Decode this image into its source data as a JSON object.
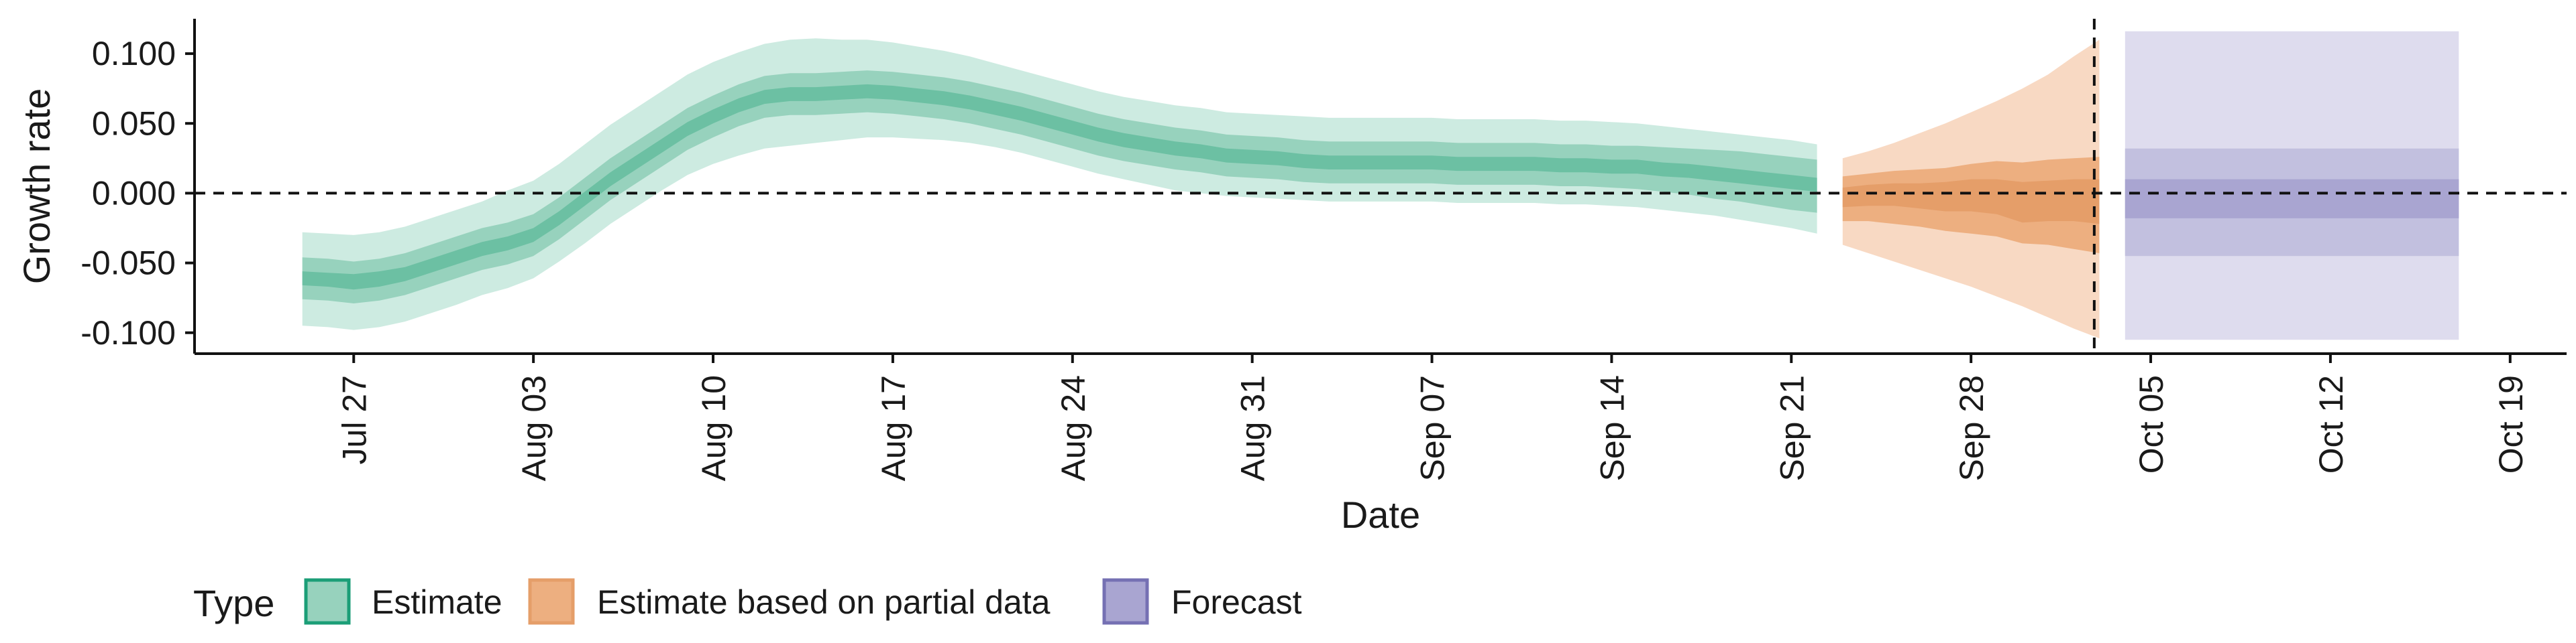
{
  "chart_data": {
    "type": "area",
    "title": "",
    "xlabel": "Date",
    "ylabel": "Growth rate",
    "ylim": [
      -0.115,
      0.125
    ],
    "grid": false,
    "y_ticks": [
      {
        "value": -0.1,
        "label": "-0.100"
      },
      {
        "value": -0.05,
        "label": "-0.050"
      },
      {
        "value": 0.0,
        "label": "0.000"
      },
      {
        "value": 0.05,
        "label": "0.050"
      },
      {
        "value": 0.1,
        "label": "0.100"
      }
    ],
    "x_ticks": [
      {
        "day": 0,
        "label": "Jul 27"
      },
      {
        "day": 7,
        "label": "Aug 03"
      },
      {
        "day": 14,
        "label": "Aug 10"
      },
      {
        "day": 21,
        "label": "Aug 17"
      },
      {
        "day": 28,
        "label": "Aug 24"
      },
      {
        "day": 35,
        "label": "Aug 31"
      },
      {
        "day": 42,
        "label": "Sep 07"
      },
      {
        "day": 49,
        "label": "Sep 14"
      },
      {
        "day": 56,
        "label": "Sep 21"
      },
      {
        "day": 63,
        "label": "Sep 28"
      },
      {
        "day": 70,
        "label": "Oct 05"
      },
      {
        "day": 77,
        "label": "Oct 12"
      },
      {
        "day": 84,
        "label": "Oct 19"
      }
    ],
    "x_range_days": [
      -6.2,
      86.2
    ],
    "x_origin_note": "day 0 = Jul 27",
    "reference_lines": {
      "horizontal_y": 0.0,
      "vertical_day": 67.8
    },
    "colors": {
      "Estimate": "#1b9e77",
      "Estimate based on partial data": "#e57b2c",
      "Forecast": "#7570b3",
      "Estimate_outer": "#cdebe1",
      "Estimate_mid": "#97d2bd",
      "Estimate_inner": "#6cc0a3",
      "Partial_outer": "#f8d9c3",
      "Partial_mid": "#edaf80",
      "Partial_inner": "#e59e69",
      "Forecast_outer": "#dedcee",
      "Forecast_mid": "#c2c0df",
      "Forecast_inner": "#a9a5d1"
    },
    "series": [
      {
        "name": "Estimate",
        "days": [
          -2,
          -1,
          0,
          1,
          2,
          3,
          4,
          5,
          6,
          7,
          8,
          9,
          10,
          11,
          12,
          13,
          14,
          15,
          16,
          17,
          18,
          19,
          20,
          21,
          22,
          23,
          24,
          25,
          26,
          27,
          28,
          29,
          30,
          31,
          32,
          33,
          34,
          35,
          36,
          37,
          38,
          39,
          40,
          41,
          42,
          43,
          44,
          45,
          46,
          47,
          48,
          49,
          50,
          51,
          52,
          53,
          54,
          55,
          56,
          57
        ],
        "median": [
          -0.061,
          -0.062,
          -0.064,
          -0.062,
          -0.058,
          -0.052,
          -0.046,
          -0.04,
          -0.036,
          -0.03,
          -0.018,
          -0.004,
          0.01,
          0.022,
          0.034,
          0.046,
          0.055,
          0.063,
          0.069,
          0.071,
          0.071,
          0.072,
          0.073,
          0.072,
          0.07,
          0.068,
          0.065,
          0.061,
          0.057,
          0.052,
          0.047,
          0.042,
          0.038,
          0.035,
          0.032,
          0.03,
          0.027,
          0.026,
          0.025,
          0.023,
          0.022,
          0.022,
          0.022,
          0.022,
          0.022,
          0.021,
          0.021,
          0.021,
          0.021,
          0.02,
          0.02,
          0.019,
          0.019,
          0.017,
          0.016,
          0.014,
          0.012,
          0.01,
          0.008,
          0.006
        ],
        "band_inner": [
          [
            -0.066,
            -0.056
          ],
          [
            -0.067,
            -0.057
          ],
          [
            -0.069,
            -0.058
          ],
          [
            -0.067,
            -0.056
          ],
          [
            -0.063,
            -0.053
          ],
          [
            -0.057,
            -0.047
          ],
          [
            -0.051,
            -0.041
          ],
          [
            -0.045,
            -0.035
          ],
          [
            -0.041,
            -0.031
          ],
          [
            -0.035,
            -0.025
          ],
          [
            -0.023,
            -0.013
          ],
          [
            -0.009,
            0.001
          ],
          [
            0.005,
            0.015
          ],
          [
            0.017,
            0.027
          ],
          [
            0.029,
            0.039
          ],
          [
            0.041,
            0.051
          ],
          [
            0.05,
            0.06
          ],
          [
            0.058,
            0.068
          ],
          [
            0.064,
            0.074
          ],
          [
            0.066,
            0.076
          ],
          [
            0.066,
            0.076
          ],
          [
            0.067,
            0.077
          ],
          [
            0.068,
            0.078
          ],
          [
            0.067,
            0.077
          ],
          [
            0.065,
            0.075
          ],
          [
            0.063,
            0.073
          ],
          [
            0.06,
            0.07
          ],
          [
            0.056,
            0.066
          ],
          [
            0.052,
            0.062
          ],
          [
            0.047,
            0.057
          ],
          [
            0.042,
            0.052
          ],
          [
            0.037,
            0.047
          ],
          [
            0.033,
            0.043
          ],
          [
            0.03,
            0.04
          ],
          [
            0.027,
            0.037
          ],
          [
            0.025,
            0.035
          ],
          [
            0.022,
            0.032
          ],
          [
            0.021,
            0.031
          ],
          [
            0.02,
            0.03
          ],
          [
            0.018,
            0.028
          ],
          [
            0.017,
            0.027
          ],
          [
            0.017,
            0.027
          ],
          [
            0.017,
            0.027
          ],
          [
            0.017,
            0.027
          ],
          [
            0.017,
            0.027
          ],
          [
            0.016,
            0.026
          ],
          [
            0.016,
            0.026
          ],
          [
            0.016,
            0.026
          ],
          [
            0.016,
            0.026
          ],
          [
            0.015,
            0.025
          ],
          [
            0.015,
            0.025
          ],
          [
            0.014,
            0.024
          ],
          [
            0.014,
            0.024
          ],
          [
            0.012,
            0.022
          ],
          [
            0.011,
            0.021
          ],
          [
            0.009,
            0.019
          ],
          [
            0.007,
            0.017
          ],
          [
            0.005,
            0.015
          ],
          [
            0.003,
            0.013
          ],
          [
            0.001,
            0.011
          ]
        ],
        "band_mid": [
          [
            -0.076,
            -0.046
          ],
          [
            -0.077,
            -0.047
          ],
          [
            -0.079,
            -0.049
          ],
          [
            -0.077,
            -0.047
          ],
          [
            -0.073,
            -0.043
          ],
          [
            -0.067,
            -0.037
          ],
          [
            -0.061,
            -0.031
          ],
          [
            -0.055,
            -0.025
          ],
          [
            -0.051,
            -0.021
          ],
          [
            -0.045,
            -0.015
          ],
          [
            -0.033,
            -0.003
          ],
          [
            -0.019,
            0.011
          ],
          [
            -0.005,
            0.025
          ],
          [
            0.007,
            0.037
          ],
          [
            0.019,
            0.049
          ],
          [
            0.031,
            0.061
          ],
          [
            0.04,
            0.07
          ],
          [
            0.048,
            0.078
          ],
          [
            0.054,
            0.084
          ],
          [
            0.056,
            0.086
          ],
          [
            0.056,
            0.086
          ],
          [
            0.057,
            0.087
          ],
          [
            0.058,
            0.088
          ],
          [
            0.057,
            0.087
          ],
          [
            0.055,
            0.085
          ],
          [
            0.053,
            0.083
          ],
          [
            0.05,
            0.08
          ],
          [
            0.046,
            0.076
          ],
          [
            0.042,
            0.072
          ],
          [
            0.037,
            0.067
          ],
          [
            0.032,
            0.062
          ],
          [
            0.027,
            0.057
          ],
          [
            0.023,
            0.053
          ],
          [
            0.02,
            0.05
          ],
          [
            0.017,
            0.047
          ],
          [
            0.015,
            0.045
          ],
          [
            0.012,
            0.042
          ],
          [
            0.011,
            0.041
          ],
          [
            0.01,
            0.04
          ],
          [
            0.008,
            0.038
          ],
          [
            0.007,
            0.037
          ],
          [
            0.007,
            0.037
          ],
          [
            0.007,
            0.037
          ],
          [
            0.007,
            0.037
          ],
          [
            0.007,
            0.037
          ],
          [
            0.006,
            0.036
          ],
          [
            0.006,
            0.036
          ],
          [
            0.006,
            0.036
          ],
          [
            0.006,
            0.036
          ],
          [
            0.005,
            0.035
          ],
          [
            0.005,
            0.035
          ],
          [
            0.004,
            0.034
          ],
          [
            0.003,
            0.034
          ],
          [
            0.001,
            0.033
          ],
          [
            -0.001,
            0.032
          ],
          [
            -0.004,
            0.031
          ],
          [
            -0.006,
            0.03
          ],
          [
            -0.009,
            0.028
          ],
          [
            -0.012,
            0.026
          ],
          [
            -0.014,
            0.024
          ]
        ],
        "band_outer": [
          [
            -0.095,
            -0.028
          ],
          [
            -0.096,
            -0.029
          ],
          [
            -0.098,
            -0.03
          ],
          [
            -0.096,
            -0.028
          ],
          [
            -0.092,
            -0.024
          ],
          [
            -0.086,
            -0.018
          ],
          [
            -0.08,
            -0.012
          ],
          [
            -0.073,
            -0.006
          ],
          [
            -0.068,
            0.002
          ],
          [
            -0.061,
            0.009
          ],
          [
            -0.049,
            0.021
          ],
          [
            -0.036,
            0.035
          ],
          [
            -0.022,
            0.049
          ],
          [
            -0.01,
            0.061
          ],
          [
            0.002,
            0.073
          ],
          [
            0.013,
            0.085
          ],
          [
            0.021,
            0.094
          ],
          [
            0.027,
            0.101
          ],
          [
            0.032,
            0.107
          ],
          [
            0.034,
            0.11
          ],
          [
            0.036,
            0.111
          ],
          [
            0.038,
            0.11
          ],
          [
            0.04,
            0.11
          ],
          [
            0.04,
            0.108
          ],
          [
            0.039,
            0.105
          ],
          [
            0.038,
            0.102
          ],
          [
            0.036,
            0.098
          ],
          [
            0.033,
            0.093
          ],
          [
            0.029,
            0.088
          ],
          [
            0.024,
            0.083
          ],
          [
            0.019,
            0.078
          ],
          [
            0.014,
            0.073
          ],
          [
            0.01,
            0.069
          ],
          [
            0.006,
            0.066
          ],
          [
            0.002,
            0.063
          ],
          [
            0.0,
            0.061
          ],
          [
            -0.002,
            0.058
          ],
          [
            -0.003,
            0.057
          ],
          [
            -0.004,
            0.056
          ],
          [
            -0.005,
            0.055
          ],
          [
            -0.006,
            0.054
          ],
          [
            -0.006,
            0.054
          ],
          [
            -0.006,
            0.054
          ],
          [
            -0.006,
            0.054
          ],
          [
            -0.006,
            0.054
          ],
          [
            -0.007,
            0.053
          ],
          [
            -0.007,
            0.053
          ],
          [
            -0.007,
            0.053
          ],
          [
            -0.007,
            0.053
          ],
          [
            -0.008,
            0.052
          ],
          [
            -0.008,
            0.052
          ],
          [
            -0.009,
            0.051
          ],
          [
            -0.01,
            0.05
          ],
          [
            -0.012,
            0.048
          ],
          [
            -0.014,
            0.046
          ],
          [
            -0.016,
            0.044
          ],
          [
            -0.019,
            0.042
          ],
          [
            -0.022,
            0.04
          ],
          [
            -0.025,
            0.038
          ],
          [
            -0.029,
            0.035
          ]
        ]
      },
      {
        "name": "Estimate based on partial data",
        "days": [
          58,
          59,
          60,
          61,
          62,
          63,
          64,
          65,
          66,
          67,
          68
        ],
        "median": [
          -0.003,
          -0.002,
          -0.002,
          -0.003,
          -0.003,
          -0.002,
          -0.003,
          -0.007,
          -0.005,
          -0.004,
          -0.005
        ],
        "band_inner": [
          [
            -0.01,
            0.004
          ],
          [
            -0.009,
            0.006
          ],
          [
            -0.009,
            0.007
          ],
          [
            -0.011,
            0.007
          ],
          [
            -0.013,
            0.008
          ],
          [
            -0.013,
            0.01
          ],
          [
            -0.015,
            0.01
          ],
          [
            -0.021,
            0.008
          ],
          [
            -0.02,
            0.009
          ],
          [
            -0.02,
            0.01
          ],
          [
            -0.022,
            0.01
          ]
        ],
        "band_mid": [
          [
            -0.02,
            0.012
          ],
          [
            -0.02,
            0.014
          ],
          [
            -0.022,
            0.016
          ],
          [
            -0.024,
            0.017
          ],
          [
            -0.027,
            0.018
          ],
          [
            -0.029,
            0.021
          ],
          [
            -0.031,
            0.023
          ],
          [
            -0.036,
            0.022
          ],
          [
            -0.037,
            0.024
          ],
          [
            -0.04,
            0.025
          ],
          [
            -0.043,
            0.026
          ]
        ],
        "band_outer": [
          [
            -0.037,
            0.025
          ],
          [
            -0.043,
            0.03
          ],
          [
            -0.049,
            0.036
          ],
          [
            -0.055,
            0.043
          ],
          [
            -0.061,
            0.05
          ],
          [
            -0.067,
            0.058
          ],
          [
            -0.074,
            0.066
          ],
          [
            -0.081,
            0.075
          ],
          [
            -0.089,
            0.085
          ],
          [
            -0.097,
            0.098
          ],
          [
            -0.104,
            0.11
          ]
        ]
      },
      {
        "name": "Forecast",
        "days": [
          69,
          82
        ],
        "median": [
          -0.004,
          -0.004
        ],
        "band_inner": [
          [
            -0.018,
            0.01
          ],
          [
            -0.018,
            0.01
          ]
        ],
        "band_mid": [
          [
            -0.045,
            0.032
          ],
          [
            -0.045,
            0.032
          ]
        ],
        "band_outer": [
          [
            -0.105,
            0.116
          ],
          [
            -0.105,
            0.116
          ]
        ]
      }
    ],
    "legend": {
      "title": "Type",
      "position": "bottom",
      "entries": [
        "Estimate",
        "Estimate based on partial data",
        "Forecast"
      ]
    }
  }
}
